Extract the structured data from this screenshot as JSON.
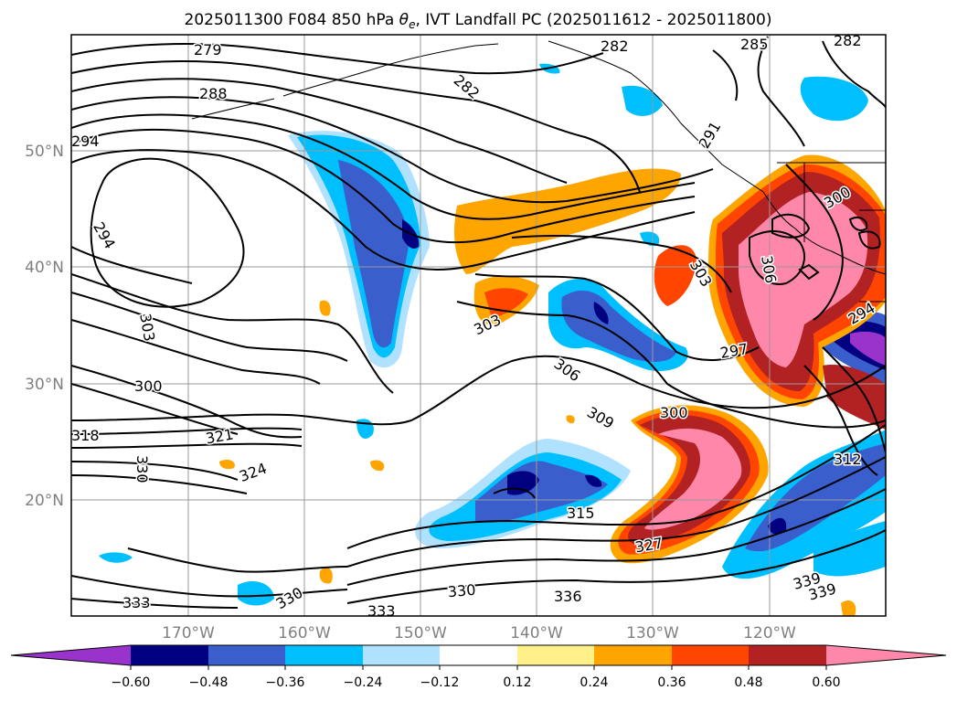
{
  "title_main": "2025011300 F084 850 hPa ",
  "title_theta": "θ",
  "title_sub": "e",
  "title_rest": ", IVT Landfall PC (2025011612 - 2025011800)",
  "map": {
    "lat_labels": [
      "50°N",
      "40°N",
      "30°N",
      "20°N"
    ],
    "lon_labels": [
      "170°W",
      "160°W",
      "150°W",
      "140°W",
      "130°W",
      "120°W"
    ],
    "contour_labels": [
      "279",
      "282",
      "285",
      "282",
      "288",
      "282",
      "291",
      "294",
      "294",
      "303",
      "300",
      "303",
      "300",
      "306",
      "303",
      "297",
      "294",
      "306",
      "309",
      "300",
      "321",
      "318",
      "330",
      "324",
      "315",
      "327",
      "312",
      "330",
      "333",
      "333",
      "330",
      "336",
      "339",
      "339"
    ]
  },
  "colorbar": {
    "ticks": [
      "−0.60",
      "−0.48",
      "−0.36",
      "−0.24",
      "−0.12",
      "0.12",
      "0.24",
      "0.36",
      "0.48",
      "0.60"
    ],
    "colors": {
      "lt_neg060": "#9933cc",
      "neg060_neg048": "#000080",
      "neg048_neg036": "#3a5fcd",
      "neg036_neg024": "#00bfff",
      "neg024_neg012": "#b0e2ff",
      "neg012_012": "#ffffff",
      "p012_024": "#fff08a",
      "p024_036": "#ffa500",
      "p036_048": "#ff4500",
      "p048_060": "#b22222",
      "gt_060": "#ff88aa"
    }
  }
}
